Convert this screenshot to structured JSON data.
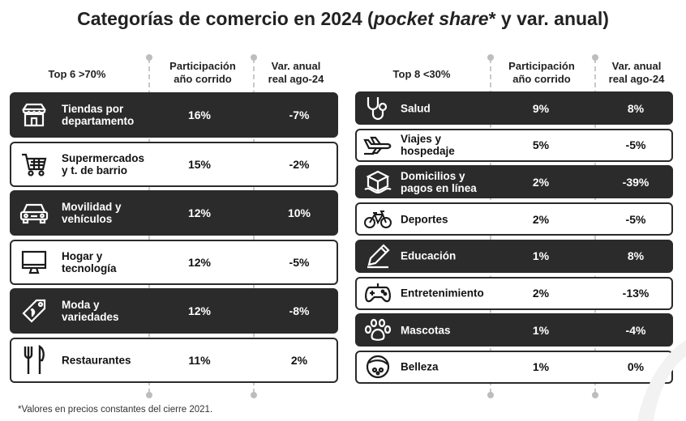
{
  "title": {
    "main": "Categorías de comercio en 2024 (",
    "italic": "pocket share",
    "rest": "* y var. anual)"
  },
  "left": {
    "header": {
      "group": "Top 6 >70%",
      "share": "Participación\naño corrido",
      "var": "Var. anual\nreal ago-24"
    },
    "rows": [
      {
        "label": "Tiendas por\ndepartamento",
        "share": "16%",
        "var": "-7%",
        "icon": "store-icon",
        "style": "dark"
      },
      {
        "label": "Supermercados\ny t. de barrio",
        "share": "15%",
        "var": "-2%",
        "icon": "cart-icon",
        "style": "light"
      },
      {
        "label": "Movilidad y\nvehículos",
        "share": "12%",
        "var": "10%",
        "icon": "car-icon",
        "style": "dark"
      },
      {
        "label": "Hogar y\ntecnología",
        "share": "12%",
        "var": "-5%",
        "icon": "monitor-icon",
        "style": "light"
      },
      {
        "label": "Moda y\nvariedades",
        "share": "12%",
        "var": "-8%",
        "icon": "tag-icon",
        "style": "dark"
      },
      {
        "label": "Restaurantes",
        "share": "11%",
        "var": "2%",
        "icon": "cutlery-icon",
        "style": "light"
      }
    ]
  },
  "right": {
    "header": {
      "group": "Top 8 <30%",
      "share": "Participación\naño corrido",
      "var": "Var. anual\nreal ago-24"
    },
    "rows": [
      {
        "label": "Salud",
        "share": "9%",
        "var": "8%",
        "icon": "stethoscope-icon",
        "style": "dark"
      },
      {
        "label": "Viajes y\nhospedaje",
        "share": "5%",
        "var": "-5%",
        "icon": "plane-icon",
        "style": "light"
      },
      {
        "label": "Domicilios y\npagos en línea",
        "share": "2%",
        "var": "-39%",
        "icon": "package-icon",
        "style": "dark"
      },
      {
        "label": "Deportes",
        "share": "2%",
        "var": "-5%",
        "icon": "bicycle-icon",
        "style": "light"
      },
      {
        "label": "Educación",
        "share": "1%",
        "var": "8%",
        "icon": "pencil-icon",
        "style": "dark"
      },
      {
        "label": "Entretenimiento",
        "share": "2%",
        "var": "-13%",
        "icon": "gamepad-icon",
        "style": "light"
      },
      {
        "label": "Mascotas",
        "share": "1%",
        "var": "-4%",
        "icon": "paw-icon",
        "style": "dark"
      },
      {
        "label": "Belleza",
        "share": "1%",
        "var": "0%",
        "icon": "compact-icon",
        "style": "light"
      }
    ]
  },
  "footnote": "*Valores en precios constantes del cierre 2021.",
  "colors": {
    "dark_row": "#2b2b2b",
    "light_row": "#ffffff",
    "border": "#2a2a2a",
    "divider": "#c8c8c8"
  }
}
